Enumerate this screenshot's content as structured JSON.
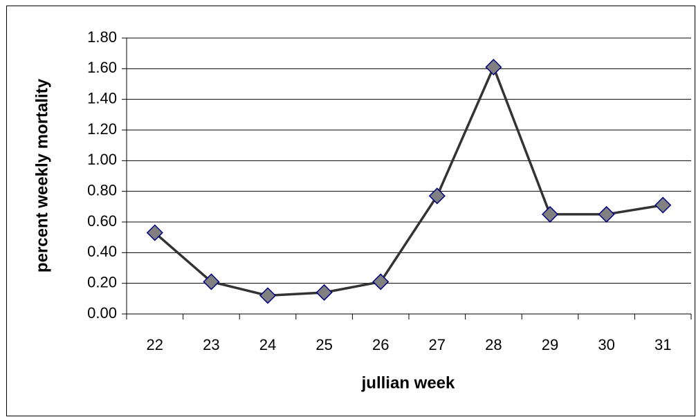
{
  "chart_data": {
    "type": "line",
    "x_label": "jullian week",
    "y_label": "percent weekly mortality",
    "categories": [
      "22",
      "23",
      "24",
      "25",
      "26",
      "27",
      "28",
      "29",
      "30",
      "31"
    ],
    "series": [
      {
        "color": "#333333",
        "marker_color": "#808080",
        "marker_edge": "#000080",
        "values": [
          0.53,
          0.21,
          0.12,
          0.14,
          0.21,
          0.77,
          1.61,
          0.65,
          0.65,
          0.71
        ]
      }
    ],
    "ylim": [
      0,
      1.8
    ],
    "yticks": [
      {
        "value": 0,
        "label": "0.00"
      },
      {
        "value": 0.2,
        "label": "0.20"
      },
      {
        "value": 0.4,
        "label": "0.40"
      },
      {
        "value": 0.6,
        "label": "0.60"
      },
      {
        "value": 0.8,
        "label": "0.80"
      },
      {
        "value": 1,
        "label": "1.00"
      },
      {
        "value": 1.2,
        "label": "1.20"
      },
      {
        "value": 1.4,
        "label": "1.40"
      },
      {
        "value": 1.6,
        "label": "1.60"
      },
      {
        "value": 1.8,
        "label": "1.80"
      }
    ],
    "grid": true
  }
}
